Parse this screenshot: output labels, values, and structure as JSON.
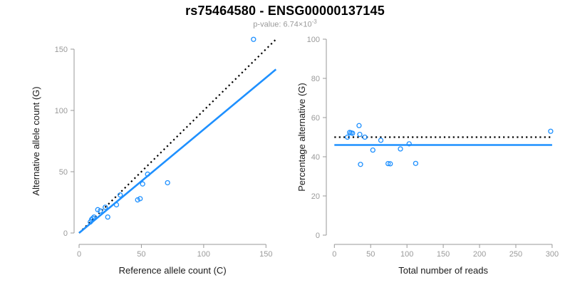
{
  "header": {
    "title": "rs75464580 - ENSG00000137145",
    "subtitle_prefix": "p-value: 6.74×10",
    "subtitle_exponent": "-3"
  },
  "colors": {
    "accent_blue": "#1E90FF",
    "reference_black": "#000000",
    "axis_gray": "#999999",
    "tick_label_gray": "#9a9a9a",
    "axis_title_black": "#1a1a1a",
    "subtitle_gray": "#9a9a9a",
    "background": "#ffffff"
  },
  "chart_data": [
    {
      "type": "scatter",
      "xlabel": "Reference allele count (C)",
      "ylabel": "Alternative allele count (G)",
      "xlim": [
        0,
        158
      ],
      "ylim": [
        0,
        160
      ],
      "xticks": [
        0,
        50,
        100,
        150
      ],
      "yticks": [
        0,
        50,
        100,
        150
      ],
      "grid": false,
      "legend": "none",
      "points": [
        [
          9,
          9
        ],
        [
          10,
          11
        ],
        [
          11,
          12
        ],
        [
          12,
          13
        ],
        [
          15,
          19
        ],
        [
          17,
          18
        ],
        [
          21,
          21
        ],
        [
          23,
          13
        ],
        [
          30,
          23
        ],
        [
          33,
          31
        ],
        [
          47,
          27
        ],
        [
          49,
          28
        ],
        [
          51,
          40
        ],
        [
          55,
          48
        ],
        [
          71,
          41
        ],
        [
          140,
          158
        ]
      ],
      "lines": [
        {
          "name": "identity-line",
          "style": "dotted",
          "color": "#000000",
          "x1": 0,
          "y1": 0,
          "x2": 158,
          "y2": 158
        },
        {
          "name": "regression-line",
          "style": "solid",
          "color": "#1E90FF",
          "x1": 0,
          "y1": 0,
          "x2": 158,
          "y2": 133.5
        }
      ]
    },
    {
      "type": "scatter",
      "xlabel": "Total number of reads",
      "ylabel": "Percentage alternative (G)",
      "xlim": [
        0,
        302
      ],
      "ylim": [
        0,
        100
      ],
      "xticks": [
        0,
        50,
        100,
        150,
        200,
        250,
        300
      ],
      "yticks": [
        0,
        20,
        40,
        60,
        80,
        100
      ],
      "grid": false,
      "legend": "none",
      "points": [
        [
          18,
          50.0
        ],
        [
          21,
          52.4
        ],
        [
          23,
          52.2
        ],
        [
          25,
          52.0
        ],
        [
          34,
          55.9
        ],
        [
          35,
          51.4
        ],
        [
          42,
          50.0
        ],
        [
          36,
          36.1
        ],
        [
          53,
          43.4
        ],
        [
          64,
          48.4
        ],
        [
          74,
          36.5
        ],
        [
          77,
          36.4
        ],
        [
          91,
          44.0
        ],
        [
          103,
          46.6
        ],
        [
          112,
          36.6
        ],
        [
          298,
          53.0
        ]
      ],
      "lines": [
        {
          "name": "null-percentage-line",
          "style": "dotted",
          "color": "#000000",
          "x1": 0,
          "y1": 50,
          "x2": 300,
          "y2": 50
        },
        {
          "name": "mean-percentage-line",
          "style": "solid",
          "color": "#1E90FF",
          "x1": 0,
          "y1": 46,
          "x2": 300,
          "y2": 46
        }
      ]
    }
  ]
}
